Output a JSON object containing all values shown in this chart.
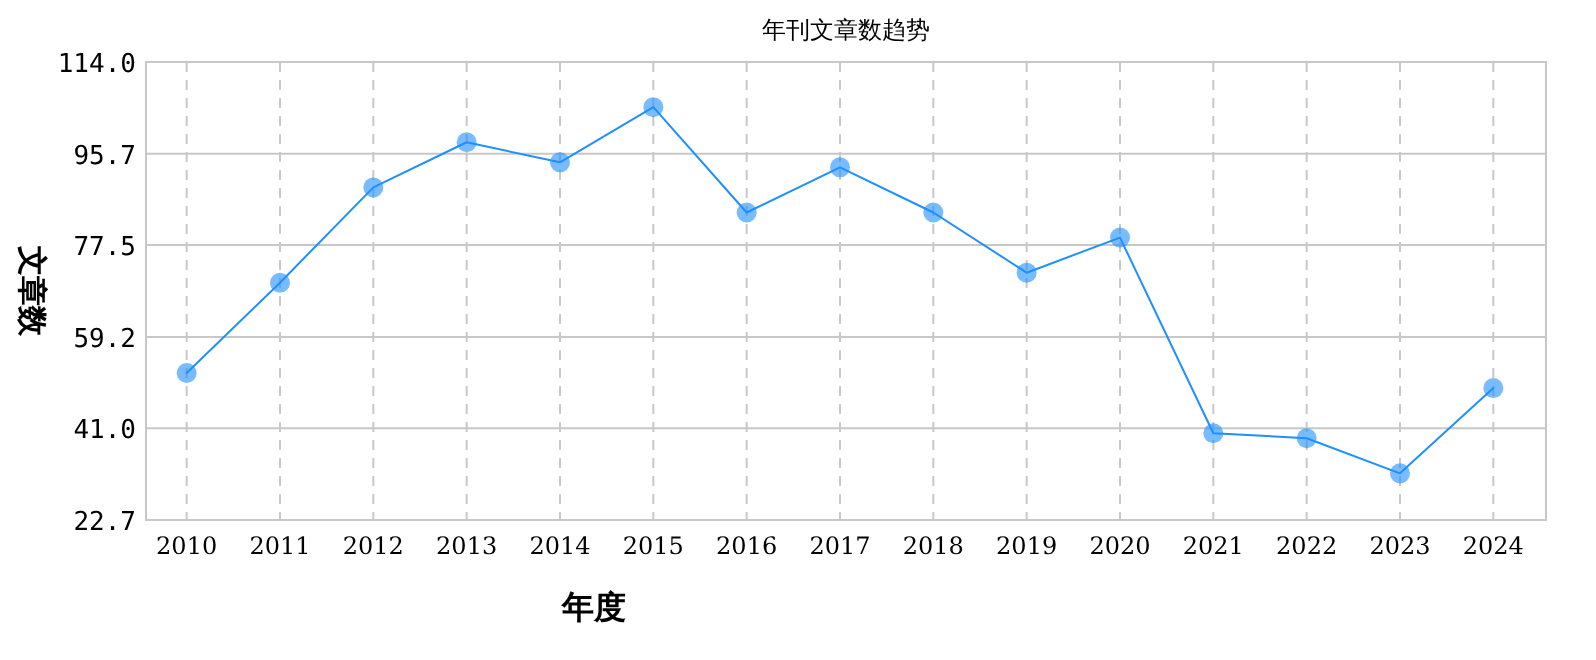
{
  "chart_data": {
    "type": "line",
    "title": "年刊文章数趋势",
    "xlabel": "年度",
    "ylabel": "文章数",
    "categories": [
      "2010",
      "2011",
      "2012",
      "2013",
      "2014",
      "2015",
      "2016",
      "2017",
      "2018",
      "2019",
      "2020",
      "2021",
      "2022",
      "2023",
      "2024"
    ],
    "series": [
      {
        "color": "#1e90ff",
        "values": [
          52,
          70,
          89,
          98,
          94,
          105,
          84,
          93,
          84,
          72,
          79,
          40,
          39,
          32,
          49
        ]
      }
    ],
    "ylim": [
      22.7,
      114.0
    ],
    "yticks": [
      22.7,
      {
        "value": 41,
        "label": "41.0"
      },
      59.2,
      77.5,
      95.7,
      {
        "value": 114,
        "label": "114.0"
      }
    ],
    "grid": true,
    "marker": "circle",
    "line_style": "solid"
  }
}
